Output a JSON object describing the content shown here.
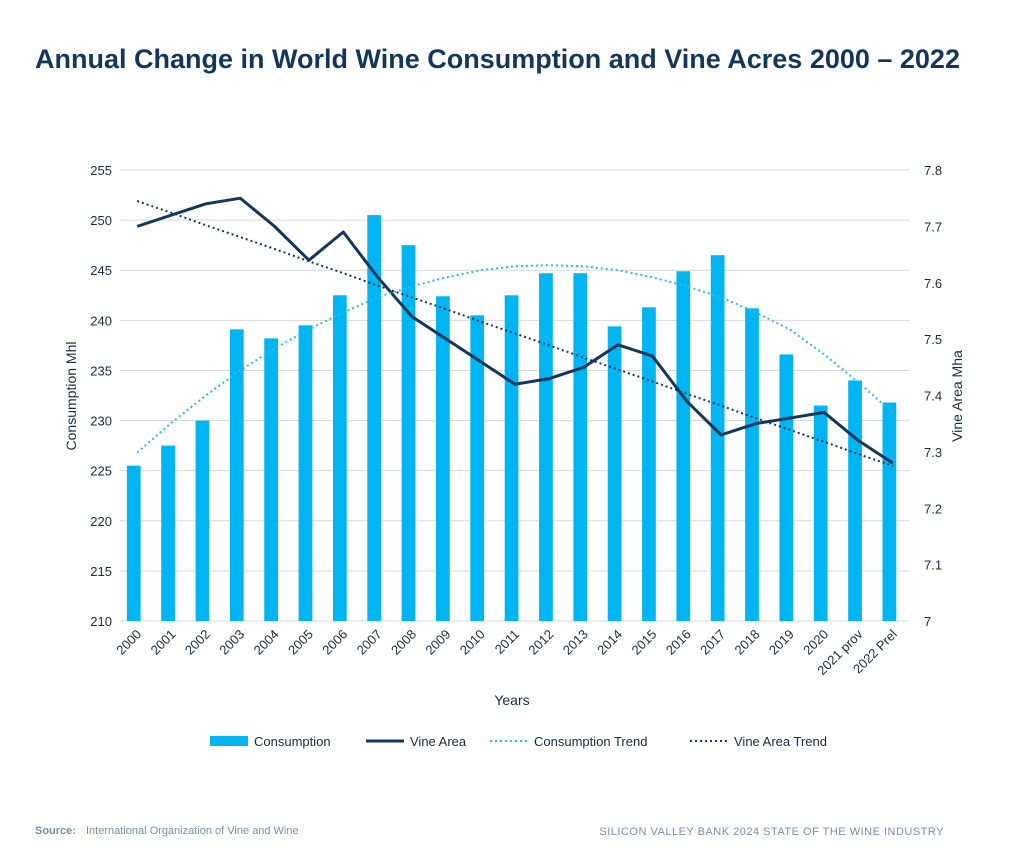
{
  "chart_data": {
    "type": "bar-line",
    "title": "Annual Change in World Wine Consumption and Vine Acres 2000 – 2022",
    "x_label": "Years",
    "y_label": "Consumption Mhl",
    "y2_label": "Vine Area Mha",
    "categories": [
      "2000",
      "2001",
      "2002",
      "2003",
      "2004",
      "2005",
      "2006",
      "2007",
      "2008",
      "2009",
      "2010",
      "2011",
      "2012",
      "2013",
      "2014",
      "2015",
      "2016",
      "2017",
      "2018",
      "2019",
      "2020",
      "2021 prov",
      "2022 Prel"
    ],
    "series": [
      {
        "name": "Consumption",
        "type": "bar",
        "color": "#00b5f1",
        "axis": "y",
        "values": [
          225.5,
          227.5,
          230,
          239.1,
          238.2,
          239.5,
          242.5,
          250.5,
          247.5,
          242.4,
          240.5,
          242.5,
          244.7,
          244.7,
          239.4,
          241.3,
          244.9,
          246.5,
          241.2,
          236.6,
          231.5,
          234,
          231.8
        ]
      },
      {
        "name": "Vine Area",
        "type": "line",
        "color": "#14365a",
        "axis": "y2",
        "dotted": false,
        "values": [
          7.7,
          7.72,
          7.74,
          7.75,
          7.7,
          7.64,
          7.69,
          7.61,
          7.54,
          7.5,
          7.46,
          7.42,
          7.43,
          7.45,
          7.49,
          7.47,
          7.39,
          7.33,
          7.35,
          7.36,
          7.37,
          7.32,
          7.28
        ]
      },
      {
        "name": "Consumption Trend",
        "type": "line",
        "color": "#2bbcef",
        "axis": "y",
        "dotted": true,
        "values": [
          226.8,
          229.8,
          232.5,
          235.0,
          237.2,
          239.1,
          240.8,
          242.3,
          243.4,
          244.3,
          245.0,
          245.4,
          245.5,
          245.4,
          245.0,
          244.3,
          243.4,
          242.3,
          240.8,
          239.1,
          236.6,
          233.8,
          230.8
        ]
      },
      {
        "name": "Vine Area Trend",
        "type": "line",
        "color": "#14365a",
        "axis": "y2",
        "dotted": true,
        "values": [
          7.745,
          7.724,
          7.702,
          7.681,
          7.66,
          7.638,
          7.617,
          7.595,
          7.574,
          7.553,
          7.531,
          7.51,
          7.489,
          7.467,
          7.446,
          7.425,
          7.403,
          7.382,
          7.36,
          7.339,
          7.318,
          7.296,
          7.275
        ]
      }
    ],
    "ylim": [
      210,
      255
    ],
    "yticks": [
      210,
      215,
      220,
      225,
      230,
      235,
      240,
      245,
      250,
      255
    ],
    "y2lim": [
      7,
      7.8
    ],
    "y2ticks": [
      7,
      7.1,
      7.2,
      7.3,
      7.4,
      7.5,
      7.6,
      7.7,
      7.8
    ],
    "grid": true,
    "legend": "bottom"
  },
  "footer": {
    "source_label": "Source:",
    "source": "International Organization of Vine and Wine",
    "credit": "SILICON VALLEY BANK 2024 STATE OF THE WINE INDUSTRY"
  }
}
